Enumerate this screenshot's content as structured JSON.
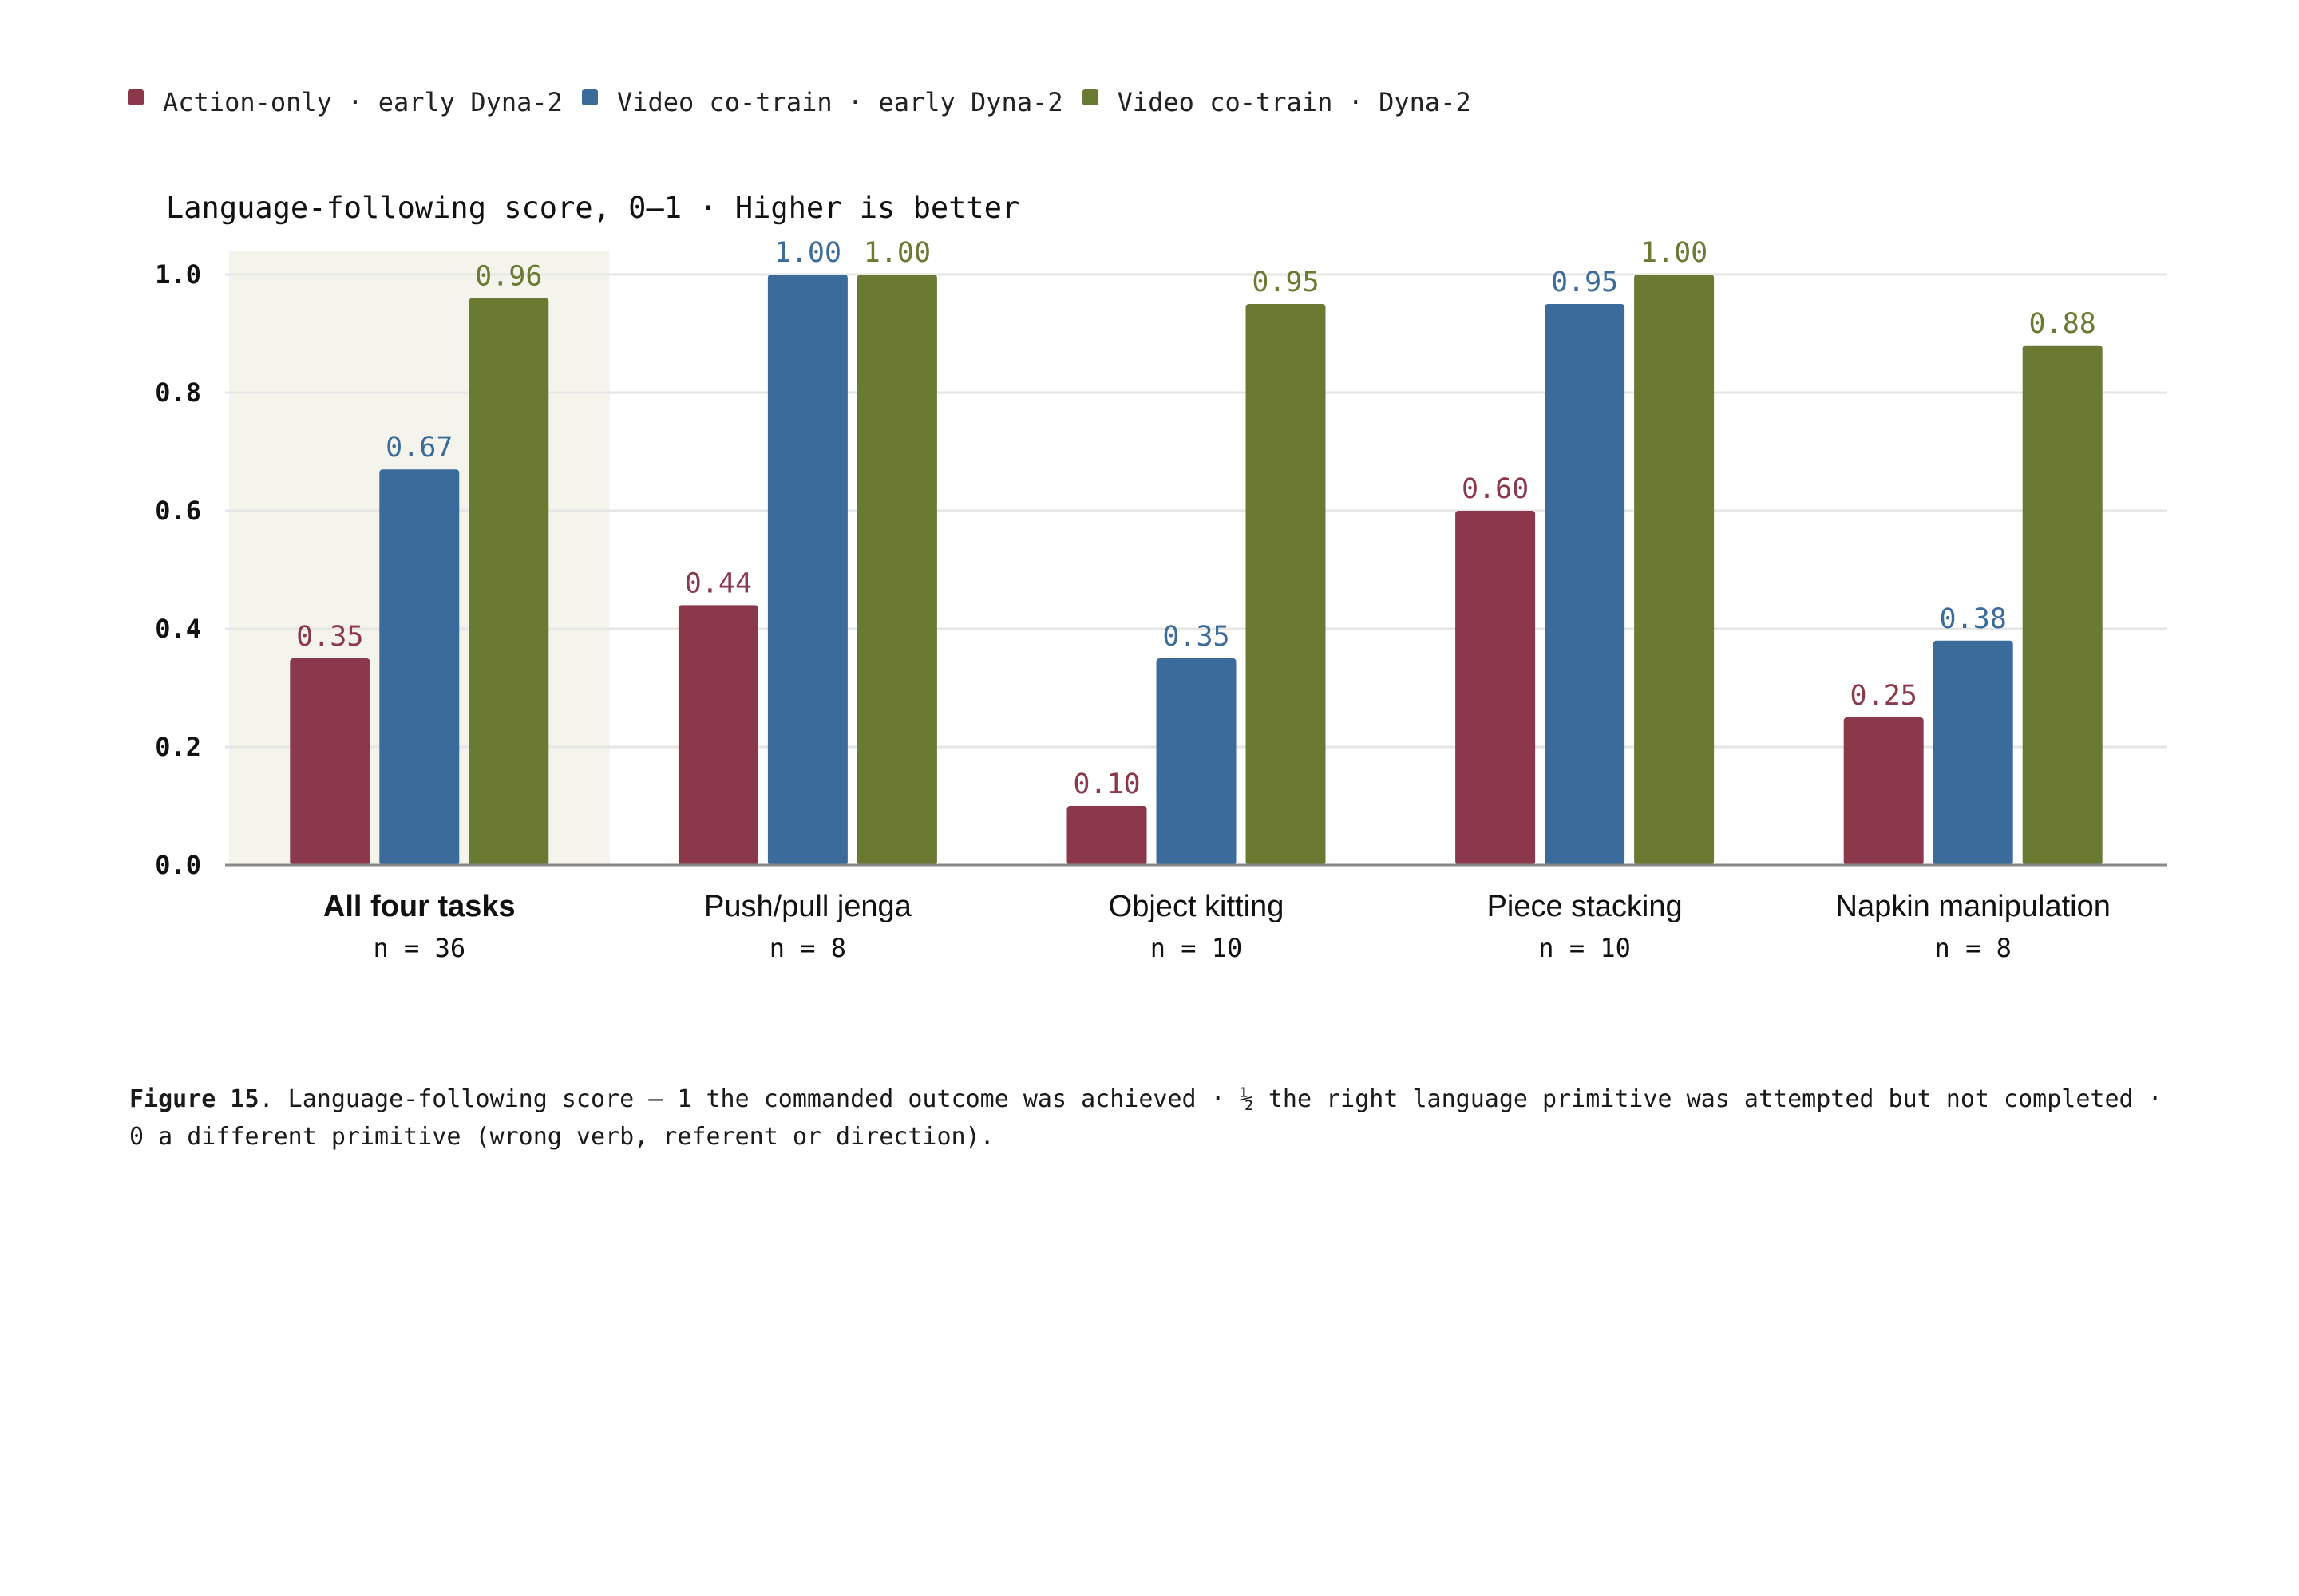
{
  "legend": [
    {
      "label": "Action-only · early Dyna-2",
      "color": "#8b384a"
    },
    {
      "label": "Video co-train · early Dyna-2",
      "color": "#3b6b9a"
    },
    {
      "label": "Video co-train · Dyna-2",
      "color": "#6a7a33"
    }
  ],
  "caption": {
    "label": "Figure 15",
    "text": ". Language-following score — 1 the commanded outcome was achieved · ½ the right language primitive was attempted but not completed · 0 a different primitive (wrong verb, referent or direction)."
  },
  "colors": {
    "highlight_band": "#f4f4ec",
    "grid": "#e6e6e6",
    "axis": "#888888"
  },
  "chart_data": {
    "type": "bar",
    "title": "Language-following score, 0–1 · Higher is better",
    "ylim": [
      0,
      1.0
    ],
    "yticks": [
      "0.0",
      "0.2",
      "0.4",
      "0.6",
      "0.8",
      "1.0"
    ],
    "grid": true,
    "legend_position": "top-left",
    "categories": [
      "All four tasks",
      "Push/pull jenga",
      "Object kitting",
      "Piece stacking",
      "Napkin manipulation"
    ],
    "category_n": [
      "n = 36",
      "n = 8",
      "n = 10",
      "n = 10",
      "n = 8"
    ],
    "highlighted_category": "All four tasks",
    "series": [
      {
        "name": "Action-only · early Dyna-2",
        "color": "#8b384a",
        "values": [
          0.35,
          0.44,
          0.1,
          0.6,
          0.25
        ],
        "labels": [
          "0.35",
          "0.44",
          "0.10",
          "0.60",
          "0.25"
        ]
      },
      {
        "name": "Video co-train · early Dyna-2",
        "color": "#3b6b9a",
        "values": [
          0.67,
          1.0,
          0.35,
          0.95,
          0.38
        ],
        "labels": [
          "0.67",
          "1.00",
          "0.35",
          "0.95",
          "0.38"
        ]
      },
      {
        "name": "Video co-train · Dyna-2",
        "color": "#6a7a33",
        "values": [
          0.96,
          1.0,
          0.95,
          1.0,
          0.88
        ],
        "labels": [
          "0.96",
          "1.00",
          "0.95",
          "1.00",
          "0.88"
        ]
      }
    ]
  }
}
